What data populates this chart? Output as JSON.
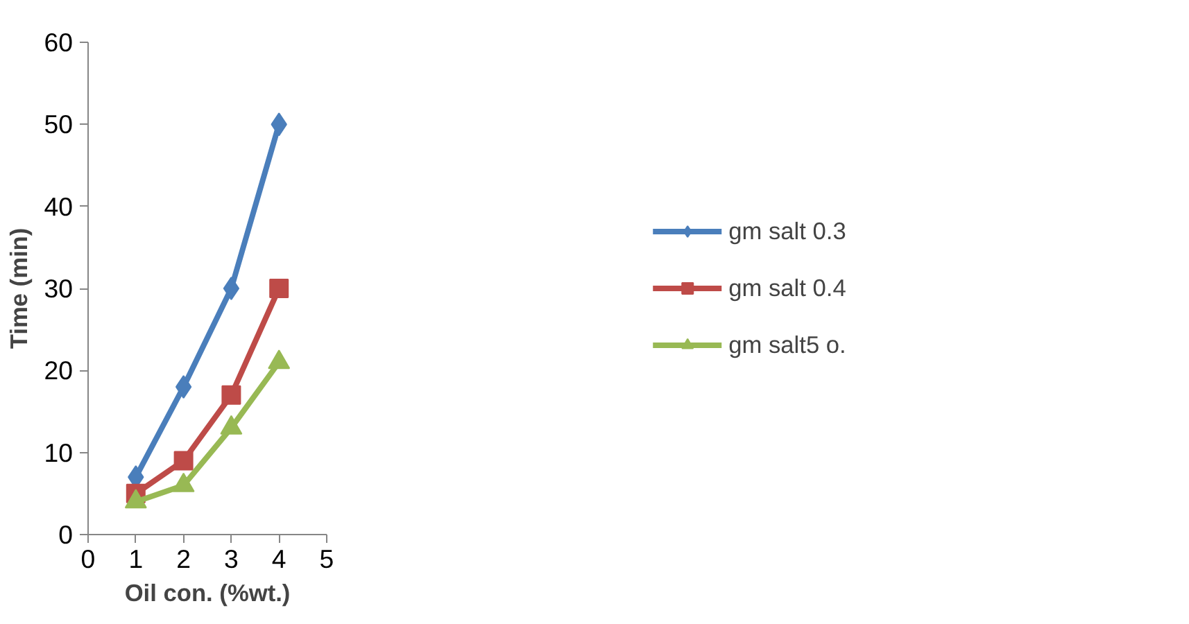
{
  "chart_data": {
    "type": "line",
    "xlabel": "Oil con. (%wt.)",
    "ylabel": "Time (min)",
    "x": [
      1,
      2,
      3,
      4
    ],
    "xlim": [
      0,
      5
    ],
    "xticks": [
      0,
      1,
      2,
      3,
      4,
      5
    ],
    "ylim": [
      0,
      60
    ],
    "yticks": [
      0,
      10,
      20,
      30,
      40,
      50,
      60
    ],
    "grid": false,
    "legend": "right",
    "line_style": "solid",
    "series": [
      {
        "name": "gm salt 0.3",
        "color": "#4a7ebb",
        "marker": "diamond",
        "values": [
          7,
          18,
          30,
          50
        ]
      },
      {
        "name": "gm salt 0.4",
        "color": "#be4b48",
        "marker": "square",
        "values": [
          5,
          9,
          17,
          30
        ]
      },
      {
        "name": "gm salt5 o.",
        "color": "#98b954",
        "marker": "triangle",
        "values": [
          4,
          6,
          13,
          21
        ]
      }
    ]
  }
}
